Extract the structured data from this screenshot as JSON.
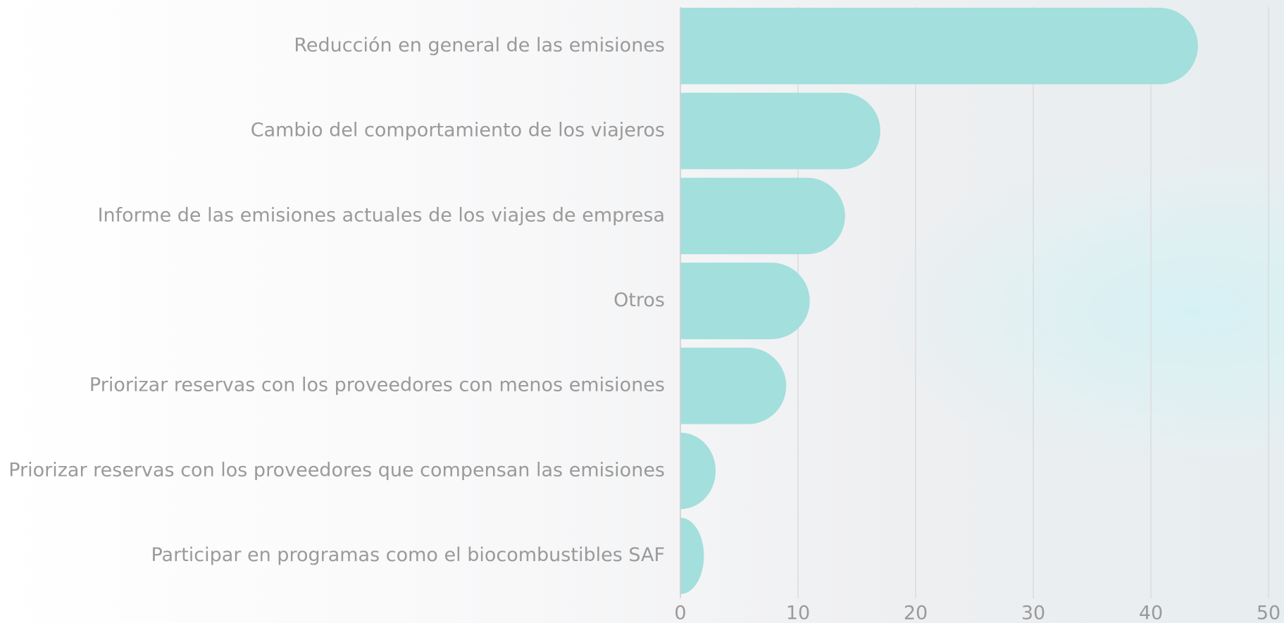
{
  "chart_data": {
    "type": "bar",
    "orientation": "horizontal",
    "categories": [
      "Reducción en general de las emisiones",
      "Cambio del comportamiento de los viajeros",
      "Informe de las emisiones actuales de los viajes de empresa",
      "Otros",
      "Priorizar reservas con los proveedores con menos emisiones",
      "Priorizar reservas con los proveedores que compensan las emisiones",
      "Participar en programas como el biocombustibles SAF"
    ],
    "values": [
      44,
      17,
      14,
      11,
      9,
      3,
      2
    ],
    "color": "#a2dfdd",
    "xlim": [
      0,
      50
    ],
    "xticks": [
      0,
      10,
      20,
      30,
      40,
      50
    ],
    "grid": true
  }
}
